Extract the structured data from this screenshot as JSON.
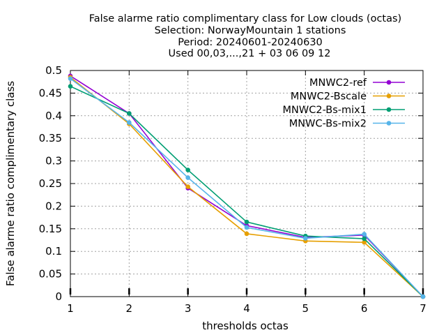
{
  "chart_data": {
    "type": "line",
    "title_lines": [
      "False alarme ratio complimentary class  for Low clouds (octas)",
      "Selection: NorwayMountain      1 stations",
      "Period: 20240601-20240630",
      "Used 00,03,...,21 + 03 06 09 12"
    ],
    "xlabel": "thresholds octas",
    "ylabel": "False alarme ratio complimentary class",
    "x": [
      1,
      2,
      3,
      4,
      5,
      6,
      7
    ],
    "xlim": [
      1,
      7
    ],
    "ylim": [
      0,
      0.5
    ],
    "x_ticks": [
      "1",
      "2",
      "3",
      "4",
      "5",
      "6",
      "7"
    ],
    "y_ticks": [
      "0",
      "0.05",
      "0.1",
      "0.15",
      "0.2",
      "0.25",
      "0.3",
      "0.35",
      "0.4",
      "0.45",
      "0.5"
    ],
    "grid": true,
    "legend_position": "top-right",
    "series": [
      {
        "name": "MNWC2-ref",
        "color": "#9400d3",
        "values": [
          0.488,
          0.405,
          0.24,
          0.157,
          0.131,
          0.136,
          0.0
        ]
      },
      {
        "name": "MNWC2-Bscale",
        "color": "#e69f00",
        "values": [
          0.485,
          0.382,
          0.243,
          0.139,
          0.123,
          0.12,
          0.0
        ]
      },
      {
        "name": "MNWC2-Bs-mix1",
        "color": "#009e73",
        "values": [
          0.465,
          0.405,
          0.28,
          0.165,
          0.134,
          0.128,
          0.0
        ]
      },
      {
        "name": "MNWC-Bs-mix2",
        "color": "#56b4e9",
        "values": [
          0.482,
          0.385,
          0.263,
          0.153,
          0.129,
          0.138,
          0.0
        ]
      }
    ]
  }
}
